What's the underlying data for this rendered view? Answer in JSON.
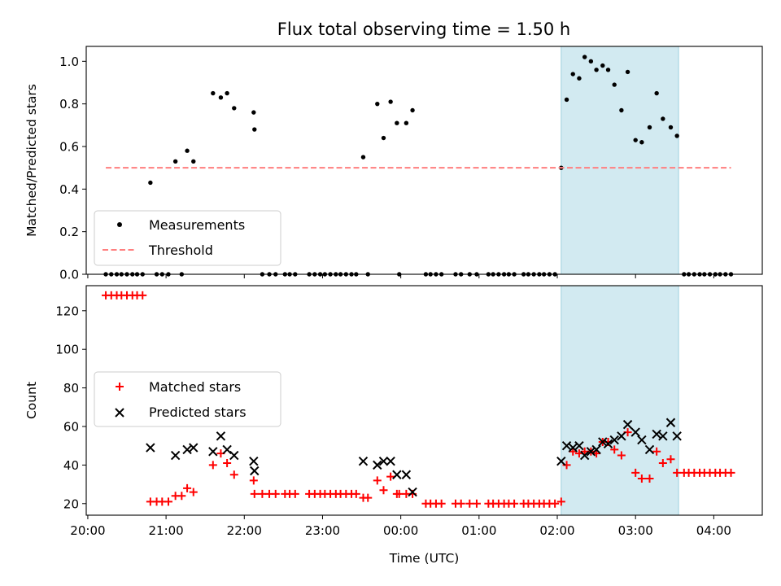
{
  "chart_data": {
    "title": "Flux total observing time = 1.50 h",
    "xlabel": "Time (UTC)",
    "x_unit": "hours UTC (values >= 24 are after midnight)",
    "xlim": [
      19.98,
      28.62
    ],
    "x_ticks": [
      20,
      21,
      22,
      23,
      24,
      25,
      26,
      27,
      28
    ],
    "x_tick_labels": [
      "20:00",
      "21:00",
      "22:00",
      "23:00",
      "00:00",
      "01:00",
      "02:00",
      "03:00",
      "04:00"
    ],
    "highlight_span": {
      "x": [
        26.05,
        27.55
      ],
      "color": "#add8e6"
    },
    "panels": [
      {
        "type": "scatter",
        "ylabel": "Matched/Predicted stars",
        "ylim": [
          0,
          1.07
        ],
        "y_ticks": [
          0.0,
          0.2,
          0.4,
          0.6,
          0.8,
          1.0
        ],
        "y_tick_labels": [
          "0.0",
          "0.2",
          "0.4",
          "0.6",
          "0.8",
          "1.0"
        ],
        "legend_position": "lower-left",
        "series": [
          {
            "name": "Measurements",
            "marker": "dot",
            "color": "#000000",
            "points": [
              [
                20.23,
                0
              ],
              [
                20.3,
                0
              ],
              [
                20.37,
                0
              ],
              [
                20.43,
                0
              ],
              [
                20.5,
                0
              ],
              [
                20.57,
                0
              ],
              [
                20.63,
                0
              ],
              [
                20.7,
                0
              ],
              [
                20.8,
                0.43
              ],
              [
                20.88,
                0
              ],
              [
                20.95,
                0
              ],
              [
                21.03,
                0
              ],
              [
                21.12,
                0.53
              ],
              [
                21.2,
                0
              ],
              [
                21.27,
                0.58
              ],
              [
                21.35,
                0.53
              ],
              [
                21.6,
                0.85
              ],
              [
                21.7,
                0.83
              ],
              [
                21.78,
                0.85
              ],
              [
                21.87,
                0.78
              ],
              [
                22.12,
                0.76
              ],
              [
                22.13,
                0.68
              ],
              [
                22.23,
                0
              ],
              [
                22.32,
                0
              ],
              [
                22.4,
                0
              ],
              [
                22.52,
                0
              ],
              [
                22.58,
                0
              ],
              [
                22.65,
                0
              ],
              [
                22.83,
                0
              ],
              [
                22.9,
                0
              ],
              [
                22.97,
                0
              ],
              [
                23.03,
                0
              ],
              [
                23.1,
                0
              ],
              [
                23.17,
                0
              ],
              [
                23.23,
                0
              ],
              [
                23.3,
                0
              ],
              [
                23.37,
                0
              ],
              [
                23.43,
                0
              ],
              [
                23.52,
                0.55
              ],
              [
                23.58,
                0
              ],
              [
                23.7,
                0.8
              ],
              [
                23.78,
                0.64
              ],
              [
                23.87,
                0.81
              ],
              [
                23.95,
                0.71
              ],
              [
                23.98,
                0
              ],
              [
                24.07,
                0.71
              ],
              [
                24.15,
                0.77
              ],
              [
                24.32,
                0
              ],
              [
                24.38,
                0
              ],
              [
                24.45,
                0
              ],
              [
                24.52,
                0
              ],
              [
                24.7,
                0
              ],
              [
                24.77,
                0
              ],
              [
                24.88,
                0
              ],
              [
                24.97,
                0
              ],
              [
                25.12,
                0
              ],
              [
                25.18,
                0
              ],
              [
                25.25,
                0
              ],
              [
                25.32,
                0
              ],
              [
                25.38,
                0
              ],
              [
                25.45,
                0
              ],
              [
                25.57,
                0
              ],
              [
                25.63,
                0
              ],
              [
                25.7,
                0
              ],
              [
                25.77,
                0
              ],
              [
                25.83,
                0
              ],
              [
                25.9,
                0
              ],
              [
                25.97,
                0
              ],
              [
                26.05,
                0.5
              ],
              [
                26.12,
                0.82
              ],
              [
                26.2,
                0.94
              ],
              [
                26.28,
                0.92
              ],
              [
                26.35,
                1.02
              ],
              [
                26.43,
                1.0
              ],
              [
                26.5,
                0.96
              ],
              [
                26.58,
                0.98
              ],
              [
                26.65,
                0.96
              ],
              [
                26.73,
                0.89
              ],
              [
                26.82,
                0.77
              ],
              [
                26.9,
                0.95
              ],
              [
                27.0,
                0.63
              ],
              [
                27.08,
                0.62
              ],
              [
                27.18,
                0.69
              ],
              [
                27.27,
                0.85
              ],
              [
                27.35,
                0.73
              ],
              [
                27.45,
                0.69
              ],
              [
                27.53,
                0.65
              ],
              [
                27.62,
                0
              ],
              [
                27.68,
                0
              ],
              [
                27.75,
                0
              ],
              [
                27.82,
                0
              ],
              [
                27.88,
                0
              ],
              [
                27.95,
                0
              ],
              [
                28.02,
                0
              ],
              [
                28.08,
                0
              ],
              [
                28.15,
                0
              ],
              [
                28.22,
                0
              ]
            ]
          },
          {
            "name": "Threshold",
            "marker": "dashed-line",
            "color": "#ff7f7f",
            "x": [
              20.23,
              28.22
            ],
            "y": [
              0.5,
              0.5
            ]
          }
        ]
      },
      {
        "type": "scatter",
        "ylabel": "Count",
        "ylim": [
          14,
          133
        ],
        "y_ticks": [
          20,
          40,
          60,
          80,
          100,
          120
        ],
        "y_tick_labels": [
          "20",
          "40",
          "60",
          "80",
          "100",
          "120"
        ],
        "legend_position": "center-left",
        "series": [
          {
            "name": "Matched stars",
            "marker": "plus",
            "color": "#ff0000",
            "points": [
              [
                20.23,
                128
              ],
              [
                20.3,
                128
              ],
              [
                20.37,
                128
              ],
              [
                20.43,
                128
              ],
              [
                20.5,
                128
              ],
              [
                20.57,
                128
              ],
              [
                20.63,
                128
              ],
              [
                20.7,
                128
              ],
              [
                20.8,
                21
              ],
              [
                20.88,
                21
              ],
              [
                20.95,
                21
              ],
              [
                21.03,
                21
              ],
              [
                21.12,
                24
              ],
              [
                21.2,
                24
              ],
              [
                21.27,
                28
              ],
              [
                21.35,
                26
              ],
              [
                21.6,
                40
              ],
              [
                21.7,
                46
              ],
              [
                21.78,
                41
              ],
              [
                21.87,
                35
              ],
              [
                22.12,
                32
              ],
              [
                22.13,
                25
              ],
              [
                22.23,
                25
              ],
              [
                22.32,
                25
              ],
              [
                22.4,
                25
              ],
              [
                22.52,
                25
              ],
              [
                22.58,
                25
              ],
              [
                22.65,
                25
              ],
              [
                22.83,
                25
              ],
              [
                22.9,
                25
              ],
              [
                22.97,
                25
              ],
              [
                23.03,
                25
              ],
              [
                23.1,
                25
              ],
              [
                23.17,
                25
              ],
              [
                23.23,
                25
              ],
              [
                23.3,
                25
              ],
              [
                23.37,
                25
              ],
              [
                23.43,
                25
              ],
              [
                23.52,
                23
              ],
              [
                23.58,
                23
              ],
              [
                23.7,
                32
              ],
              [
                23.78,
                27
              ],
              [
                23.87,
                34
              ],
              [
                23.95,
                25
              ],
              [
                23.98,
                25
              ],
              [
                24.07,
                25
              ],
              [
                24.15,
                25
              ],
              [
                24.32,
                20
              ],
              [
                24.38,
                20
              ],
              [
                24.45,
                20
              ],
              [
                24.52,
                20
              ],
              [
                24.7,
                20
              ],
              [
                24.77,
                20
              ],
              [
                24.88,
                20
              ],
              [
                24.97,
                20
              ],
              [
                25.12,
                20
              ],
              [
                25.18,
                20
              ],
              [
                25.25,
                20
              ],
              [
                25.32,
                20
              ],
              [
                25.38,
                20
              ],
              [
                25.45,
                20
              ],
              [
                25.57,
                20
              ],
              [
                25.63,
                20
              ],
              [
                25.7,
                20
              ],
              [
                25.77,
                20
              ],
              [
                25.83,
                20
              ],
              [
                25.9,
                20
              ],
              [
                25.97,
                20
              ],
              [
                26.05,
                21
              ],
              [
                26.12,
                40
              ],
              [
                26.2,
                47
              ],
              [
                26.28,
                46
              ],
              [
                26.35,
                47
              ],
              [
                26.43,
                47
              ],
              [
                26.5,
                46
              ],
              [
                26.58,
                52
              ],
              [
                26.65,
                52
              ],
              [
                26.73,
                48
              ],
              [
                26.82,
                45
              ],
              [
                26.9,
                57
              ],
              [
                27.0,
                36
              ],
              [
                27.08,
                33
              ],
              [
                27.18,
                33
              ],
              [
                27.27,
                47
              ],
              [
                27.35,
                41
              ],
              [
                27.45,
                43
              ],
              [
                27.53,
                36
              ],
              [
                27.62,
                36
              ],
              [
                27.68,
                36
              ],
              [
                27.75,
                36
              ],
              [
                27.82,
                36
              ],
              [
                27.88,
                36
              ],
              [
                27.95,
                36
              ],
              [
                28.02,
                36
              ],
              [
                28.08,
                36
              ],
              [
                28.15,
                36
              ],
              [
                28.22,
                36
              ]
            ]
          },
          {
            "name": "Predicted stars",
            "marker": "x",
            "color": "#000000",
            "points": [
              [
                20.8,
                49
              ],
              [
                21.12,
                45
              ],
              [
                21.27,
                48
              ],
              [
                21.35,
                49
              ],
              [
                21.6,
                47
              ],
              [
                21.7,
                55
              ],
              [
                21.78,
                48
              ],
              [
                21.87,
                45
              ],
              [
                22.12,
                42
              ],
              [
                22.13,
                37
              ],
              [
                23.52,
                42
              ],
              [
                23.7,
                40
              ],
              [
                23.78,
                42
              ],
              [
                23.87,
                42
              ],
              [
                23.95,
                35
              ],
              [
                24.07,
                35
              ],
              [
                24.15,
                26
              ],
              [
                26.05,
                42
              ],
              [
                26.12,
                50
              ],
              [
                26.2,
                49
              ],
              [
                26.28,
                50
              ],
              [
                26.35,
                45
              ],
              [
                26.43,
                47
              ],
              [
                26.5,
                48
              ],
              [
                26.58,
                52
              ],
              [
                26.65,
                51
              ],
              [
                26.73,
                53
              ],
              [
                26.82,
                55
              ],
              [
                26.9,
                61
              ],
              [
                27.0,
                57
              ],
              [
                27.08,
                53
              ],
              [
                27.18,
                48
              ],
              [
                27.27,
                56
              ],
              [
                27.35,
                55
              ],
              [
                27.45,
                62
              ],
              [
                27.53,
                55
              ]
            ]
          }
        ]
      }
    ]
  }
}
